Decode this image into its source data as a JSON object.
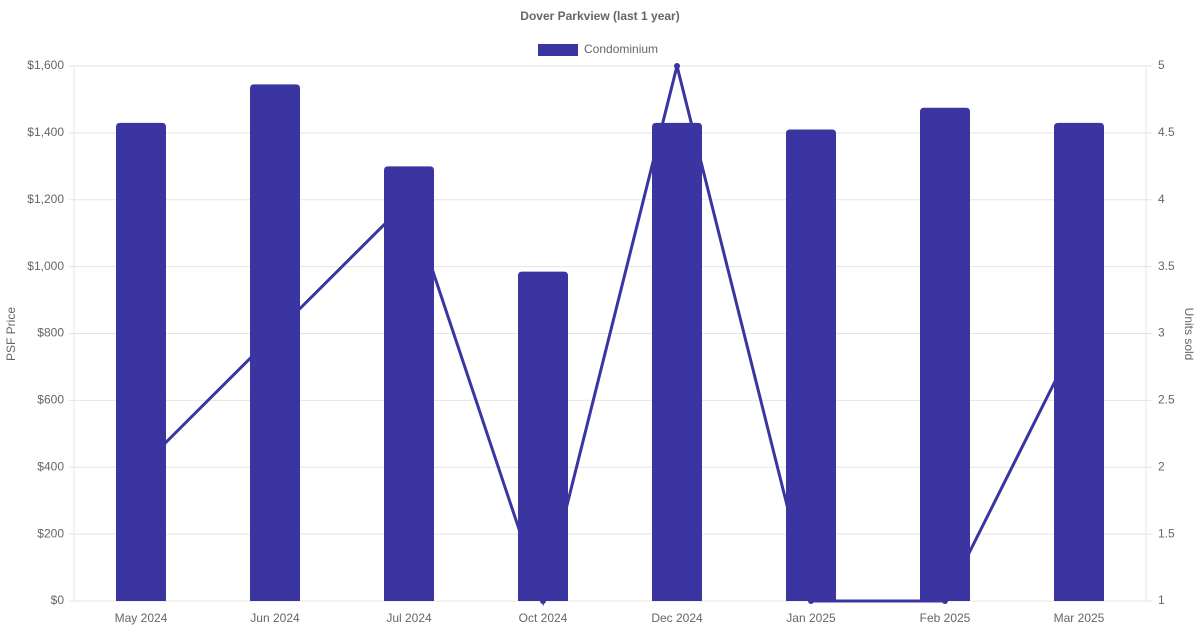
{
  "chart_data": {
    "type": "bar-line",
    "title": "Dover Parkview (last 1 year)",
    "y_label": "PSF Price",
    "y2_label": "Units sold",
    "categories": [
      "May 2024",
      "Jun 2024",
      "Jul 2024",
      "Oct 2024",
      "Dec 2024",
      "Jan 2025",
      "Feb 2025",
      "Mar 2025"
    ],
    "series": [
      {
        "name": "Condominium",
        "type": "bar",
        "color": "#3a35a0",
        "values": [
          1430,
          1545,
          1300,
          985,
          1430,
          1410,
          1475,
          1430
        ]
      },
      {
        "type": "line",
        "axis": "y2",
        "color": "#3a35a0",
        "values": [
          2,
          3,
          4,
          1,
          5,
          1,
          1,
          3
        ]
      }
    ],
    "ylim": [
      0,
      1600
    ],
    "yticks": [
      {
        "value": 0,
        "label": "$0"
      },
      {
        "value": 200,
        "label": "$200"
      },
      {
        "value": 400,
        "label": "$400"
      },
      {
        "value": 600,
        "label": "$600"
      },
      {
        "value": 800,
        "label": "$800"
      },
      {
        "value": 1000,
        "label": "$1,000"
      },
      {
        "value": 1200,
        "label": "$1,200"
      },
      {
        "value": 1400,
        "label": "$1,400"
      },
      {
        "value": 1600,
        "label": "$1,600"
      }
    ],
    "y2lim": [
      1,
      5
    ],
    "y2ticks": [
      1,
      1.5,
      2,
      2.5,
      3,
      3.5,
      4,
      4.5,
      5
    ],
    "grid": true
  }
}
